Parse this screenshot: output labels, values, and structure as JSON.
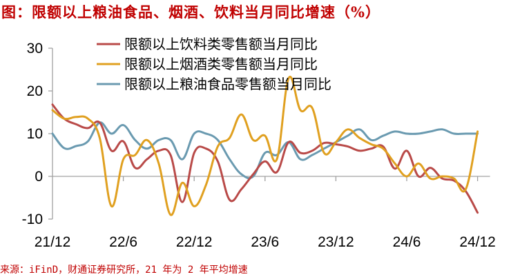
{
  "title": "图：限额以上粮油食品、烟酒、饮料当月同比增速（%）",
  "source": "来源：iFinD，财通证券研究所，21 年为 2 年平均增速",
  "chart_data": {
    "type": "line",
    "title": "限额以上粮油食品、烟酒、饮料当月同比增速（%）",
    "xlabel": "",
    "ylabel": "%",
    "ylim": [
      -10,
      30
    ],
    "yticks": [
      30,
      20,
      10,
      0,
      -10
    ],
    "xtick_labels": [
      "21/12",
      "22/6",
      "22/12",
      "23/6",
      "23/12",
      "24/6",
      "24/12"
    ],
    "grid": false,
    "legend_position": "top-center",
    "x": [
      "21/12",
      "22/1",
      "22/2",
      "22/3",
      "22/4",
      "22/5",
      "22/6",
      "22/7",
      "22/8",
      "22/9",
      "22/10",
      "22/11",
      "22/12",
      "23/1",
      "23/2",
      "23/3",
      "23/4",
      "23/5",
      "23/6",
      "23/7",
      "23/8",
      "23/9",
      "23/10",
      "23/11",
      "23/12",
      "24/1",
      "24/2",
      "24/3",
      "24/4",
      "24/5",
      "24/6",
      "24/7",
      "24/8",
      "24/9",
      "24/10",
      "24/11",
      "24/12"
    ],
    "series": [
      {
        "name": "限额以上饮料类零售额当月同比",
        "color": "#b94a48",
        "values": [
          16.8,
          13.5,
          12.2,
          11.3,
          12.6,
          6.0,
          8.2,
          2.0,
          4.0,
          6.0,
          5.0,
          -6.0,
          5.5,
          6.5,
          3.5,
          -5.5,
          -3.0,
          0.5,
          3.5,
          1.0,
          8.0,
          5.5,
          6.0,
          7.8,
          7.5,
          7.0,
          6.0,
          6.5,
          7.0,
          1.8,
          6.0,
          0.0,
          2.0,
          -0.5,
          -1.0,
          -3.5,
          -8.5
        ]
      },
      {
        "name": "限额以上烟酒类零售额当月同比",
        "color": "#e0a020",
        "values": [
          15.5,
          13.5,
          13.9,
          13.5,
          9.0,
          -7.0,
          4.0,
          5.0,
          8.5,
          3.0,
          -9.0,
          -1.5,
          -7.0,
          -2.0,
          7.0,
          9.0,
          14.5,
          8.5,
          9.5,
          4.0,
          23.0,
          15.5,
          16.0,
          5.5,
          8.0,
          11.0,
          9.0,
          7.5,
          6.5,
          3.0,
          0.0,
          3.0,
          -0.5,
          0.0,
          -0.5,
          -3.0,
          10.5
        ]
      },
      {
        "name": "限额以上粮油食品零售额当月同比",
        "color": "#6a9ab0",
        "values": [
          10.0,
          6.6,
          7.1,
          8.2,
          12.6,
          10.0,
          12.0,
          8.5,
          6.5,
          8.5,
          8.5,
          4.0,
          10.0,
          10.0,
          8.5,
          4.0,
          0.5,
          0.0,
          5.5,
          5.0,
          8.0,
          4.0,
          5.0,
          6.5,
          8.0,
          9.5,
          11.0,
          8.5,
          9.5,
          10.5,
          10.0,
          10.0,
          10.5,
          11.0,
          10.0,
          10.0,
          10.0
        ]
      }
    ]
  },
  "axes": {
    "y_labels": [
      "30",
      "20",
      "10",
      "0",
      "-10"
    ],
    "x_labels": [
      "21/12",
      "22/6",
      "22/12",
      "23/6",
      "23/12",
      "24/6",
      "24/12"
    ]
  },
  "legend": [
    {
      "label": "限额以上饮料类零售额当月同比",
      "color": "#b94a48"
    },
    {
      "label": "限额以上烟酒类零售额当月同比",
      "color": "#e0a020"
    },
    {
      "label": "限额以上粮油食品零售额当月同比",
      "color": "#6a9ab0"
    }
  ]
}
